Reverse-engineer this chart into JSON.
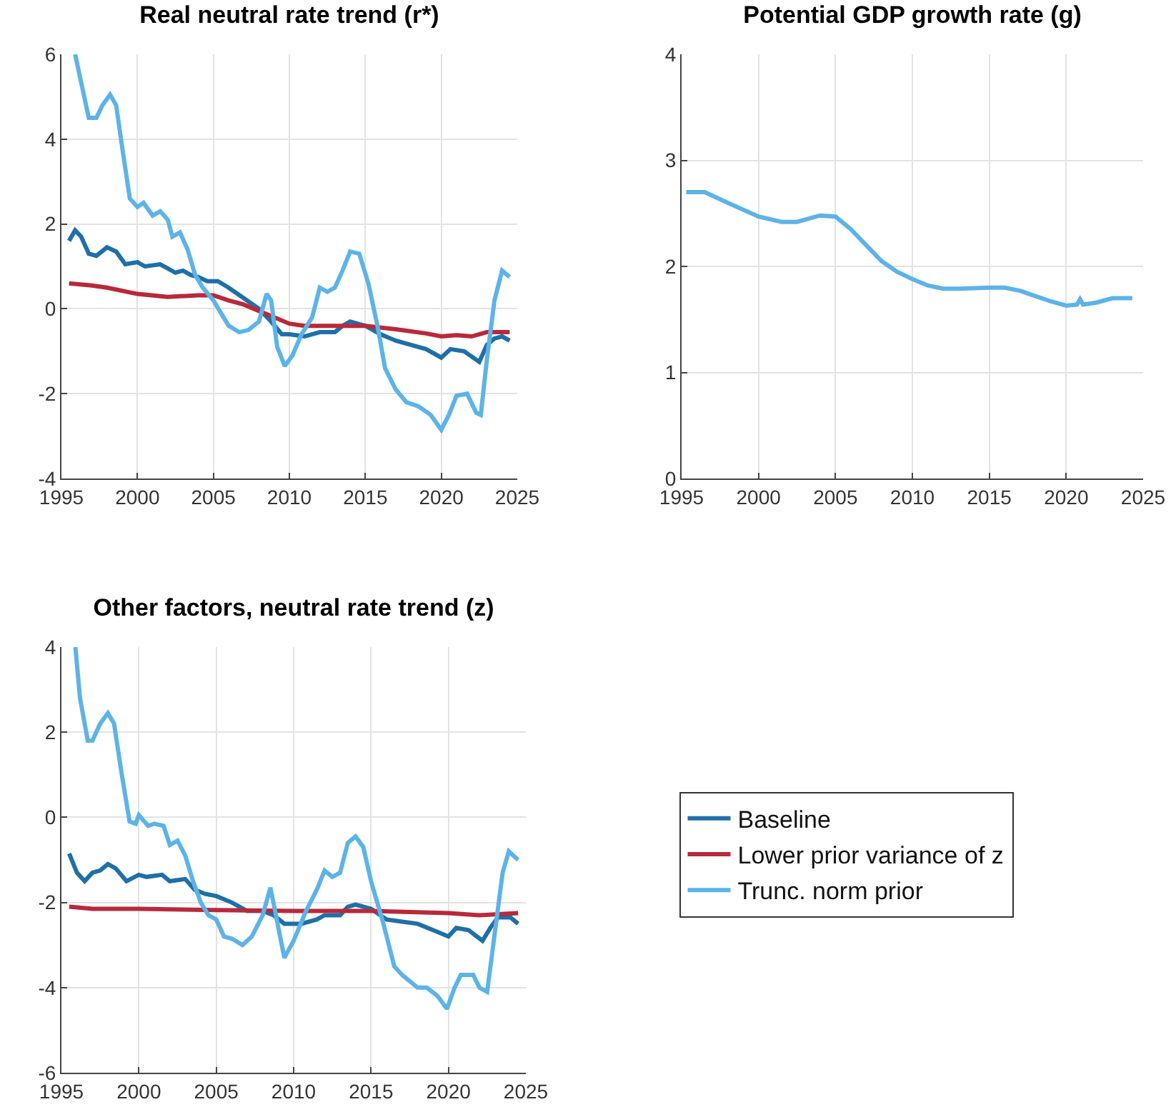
{
  "chart_data": [
    {
      "type": "line",
      "title": "Real neutral rate trend (r*)",
      "xlim": [
        1995,
        2025
      ],
      "xticks": [
        1995,
        2000,
        2005,
        2010,
        2015,
        2020,
        2025
      ],
      "ylim": [
        -4,
        6
      ],
      "yticks": [
        -4,
        -2,
        0,
        2,
        4,
        6
      ],
      "grid": true,
      "legend": false,
      "tick_labels": "xy",
      "series": [
        {
          "color": "#1f6fa8",
          "x": [
            1995.5,
            1995.9,
            1996.3,
            1996.8,
            1997.3,
            1998,
            1998.6,
            1999.2,
            2000,
            2000.5,
            2001.5,
            2002,
            2002.5,
            2003,
            2003.5,
            2004,
            2004.6,
            2005.3,
            2006,
            2007,
            2008,
            2008.8,
            2009.5,
            2010,
            2011,
            2012,
            2013,
            2013.5,
            2014,
            2015,
            2016,
            2017,
            2018,
            2019,
            2020,
            2020.6,
            2021.5,
            2022.5,
            2023,
            2023.5,
            2024,
            2024.5
          ],
          "values": [
            1.6,
            1.85,
            1.7,
            1.3,
            1.25,
            1.45,
            1.35,
            1.05,
            1.1,
            1.0,
            1.05,
            0.95,
            0.85,
            0.9,
            0.8,
            0.75,
            0.65,
            0.65,
            0.5,
            0.25,
            0.0,
            -0.3,
            -0.6,
            -0.6,
            -0.65,
            -0.55,
            -0.55,
            -0.4,
            -0.3,
            -0.4,
            -0.6,
            -0.75,
            -0.85,
            -0.95,
            -1.15,
            -0.95,
            -1.0,
            -1.25,
            -0.85,
            -0.7,
            -0.65,
            -0.75
          ]
        },
        {
          "color": "#b8293a",
          "x": [
            1995.5,
            1997,
            1998,
            2000,
            2002,
            2004,
            2005,
            2006,
            2007,
            2008,
            2009,
            2010,
            2011,
            2013,
            2015,
            2017,
            2019,
            2020,
            2021,
            2022,
            2023,
            2024.5
          ],
          "values": [
            0.6,
            0.55,
            0.5,
            0.35,
            0.28,
            0.32,
            0.32,
            0.2,
            0.1,
            -0.05,
            -0.2,
            -0.35,
            -0.4,
            -0.4,
            -0.4,
            -0.48,
            -0.58,
            -0.65,
            -0.62,
            -0.65,
            -0.55,
            -0.55
          ]
        },
        {
          "color": "#5db3e8",
          "x": [
            1995.9,
            1996.8,
            1997.3,
            1997.7,
            1998.2,
            1998.6,
            1999,
            1999.5,
            2000,
            2000.4,
            2001,
            2001.5,
            2002,
            2002.3,
            2002.8,
            2003.3,
            2003.8,
            2004.3,
            2005,
            2005.5,
            2006,
            2006.7,
            2007.3,
            2008,
            2008.5,
            2008.8,
            2009.2,
            2009.7,
            2010.2,
            2010.8,
            2011.5,
            2012,
            2012.5,
            2013,
            2013.5,
            2014,
            2014.6,
            2015.2,
            2015.8,
            2016.3,
            2017,
            2017.7,
            2018.5,
            2019.3,
            2020,
            2020.5,
            2021,
            2021.7,
            2022.3,
            2022.6,
            2023,
            2023.5,
            2024,
            2024.5
          ],
          "values": [
            6.0,
            4.5,
            4.5,
            4.8,
            5.05,
            4.8,
            3.8,
            2.6,
            2.4,
            2.5,
            2.2,
            2.3,
            2.1,
            1.7,
            1.8,
            1.4,
            0.8,
            0.5,
            0.2,
            -0.1,
            -0.4,
            -0.55,
            -0.5,
            -0.3,
            0.35,
            0.2,
            -0.9,
            -1.35,
            -1.1,
            -0.6,
            -0.2,
            0.5,
            0.4,
            0.5,
            0.9,
            1.35,
            1.3,
            0.6,
            -0.4,
            -1.4,
            -1.9,
            -2.2,
            -2.3,
            -2.5,
            -2.85,
            -2.5,
            -2.05,
            -2.0,
            -2.45,
            -2.5,
            -1.2,
            0.2,
            0.9,
            0.75
          ]
        }
      ]
    },
    {
      "type": "line",
      "title": "Potential GDP growth rate (g)",
      "xlim": [
        1995,
        2025
      ],
      "xticks": [
        1995,
        2000,
        2005,
        2010,
        2015,
        2020,
        2025
      ],
      "ylim": [
        0,
        4
      ],
      "yticks": [
        0,
        1,
        2,
        3,
        4
      ],
      "grid": true,
      "legend": false,
      "series": [
        {
          "color": "#5db3e8",
          "x": [
            1995.3,
            1996.5,
            1998,
            2000,
            2001.5,
            2002.5,
            2004,
            2005,
            2006,
            2007,
            2008,
            2009,
            2010,
            2011,
            2012,
            2013,
            2015,
            2016,
            2017,
            2018,
            2019,
            2020,
            2020.7,
            2020.9,
            2021.1,
            2022,
            2023,
            2024.3
          ],
          "values": [
            2.7,
            2.7,
            2.6,
            2.47,
            2.42,
            2.42,
            2.48,
            2.47,
            2.35,
            2.2,
            2.05,
            1.95,
            1.88,
            1.82,
            1.79,
            1.79,
            1.8,
            1.8,
            1.77,
            1.72,
            1.67,
            1.63,
            1.64,
            1.69,
            1.64,
            1.66,
            1.7,
            1.7
          ]
        }
      ]
    },
    {
      "type": "line",
      "title": "Other factors, neutral rate trend (z)",
      "xlim": [
        1995,
        2025
      ],
      "xticks": [
        1995,
        2000,
        2005,
        2010,
        2015,
        2020,
        2025
      ],
      "ylim": [
        -6,
        4
      ],
      "yticks": [
        -6,
        -4,
        -2,
        0,
        2,
        4
      ],
      "grid": true,
      "legend": "right",
      "series": [
        {
          "name": "Baseline",
          "color": "#1f6fa8",
          "x": [
            1995.5,
            1996,
            1996.5,
            1997,
            1997.5,
            1998,
            1998.5,
            1999.2,
            2000,
            2000.5,
            2001.5,
            2002,
            2003,
            2003.6,
            2004.3,
            2005,
            2006,
            2007,
            2008,
            2008.7,
            2009.4,
            2010.5,
            2011.5,
            2012,
            2013,
            2013.5,
            2014,
            2015,
            2016,
            2017,
            2018,
            2019,
            2020,
            2020.5,
            2021.3,
            2022.2,
            2022.7,
            2023.2,
            2024,
            2024.5
          ],
          "values": [
            -0.85,
            -1.3,
            -1.5,
            -1.3,
            -1.25,
            -1.1,
            -1.2,
            -1.5,
            -1.35,
            -1.4,
            -1.35,
            -1.5,
            -1.45,
            -1.7,
            -1.8,
            -1.85,
            -2.0,
            -2.2,
            -2.2,
            -2.3,
            -2.5,
            -2.5,
            -2.4,
            -2.3,
            -2.3,
            -2.1,
            -2.05,
            -2.15,
            -2.4,
            -2.45,
            -2.5,
            -2.65,
            -2.8,
            -2.6,
            -2.65,
            -2.9,
            -2.6,
            -2.35,
            -2.35,
            -2.5
          ]
        },
        {
          "name": "Lower prior variance of z",
          "color": "#b8293a",
          "x": [
            1995.5,
            1997,
            2000,
            2005,
            2010,
            2015,
            2020,
            2022,
            2024.5
          ],
          "values": [
            -2.1,
            -2.15,
            -2.15,
            -2.18,
            -2.2,
            -2.2,
            -2.25,
            -2.3,
            -2.25
          ]
        },
        {
          "name": "Trunc. norm prior",
          "color": "#5db3e8",
          "x": [
            1995.9,
            1996.2,
            1996.7,
            1997,
            1997.5,
            1998,
            1998.4,
            1998.9,
            1999.4,
            1999.8,
            2000,
            2000.6,
            2001,
            2001.6,
            2002,
            2002.5,
            2003,
            2003.5,
            2004,
            2004.5,
            2005,
            2005.5,
            2006,
            2006.7,
            2007.3,
            2008,
            2008.5,
            2008.8,
            2009.4,
            2010,
            2010.8,
            2011.5,
            2012,
            2012.5,
            2013,
            2013.5,
            2014,
            2014.5,
            2015,
            2015.8,
            2016.5,
            2017,
            2018,
            2018.6,
            2019.3,
            2019.9,
            2020.4,
            2020.8,
            2021.6,
            2022,
            2022.5,
            2023,
            2023.5,
            2023.9,
            2024.5
          ],
          "values": [
            4.0,
            2.8,
            1.8,
            1.8,
            2.2,
            2.45,
            2.2,
            1.0,
            -0.1,
            -0.15,
            0.05,
            -0.2,
            -0.15,
            -0.2,
            -0.65,
            -0.55,
            -0.9,
            -1.5,
            -2.0,
            -2.3,
            -2.4,
            -2.8,
            -2.85,
            -3.0,
            -2.8,
            -2.3,
            -1.65,
            -2.2,
            -3.3,
            -2.9,
            -2.2,
            -1.7,
            -1.25,
            -1.4,
            -1.3,
            -0.6,
            -0.45,
            -0.7,
            -1.5,
            -2.5,
            -3.5,
            -3.7,
            -4.0,
            -4.0,
            -4.2,
            -4.5,
            -4.0,
            -3.7,
            -3.7,
            -4.0,
            -4.1,
            -2.7,
            -1.3,
            -0.8,
            -1.0
          ]
        }
      ]
    }
  ]
}
